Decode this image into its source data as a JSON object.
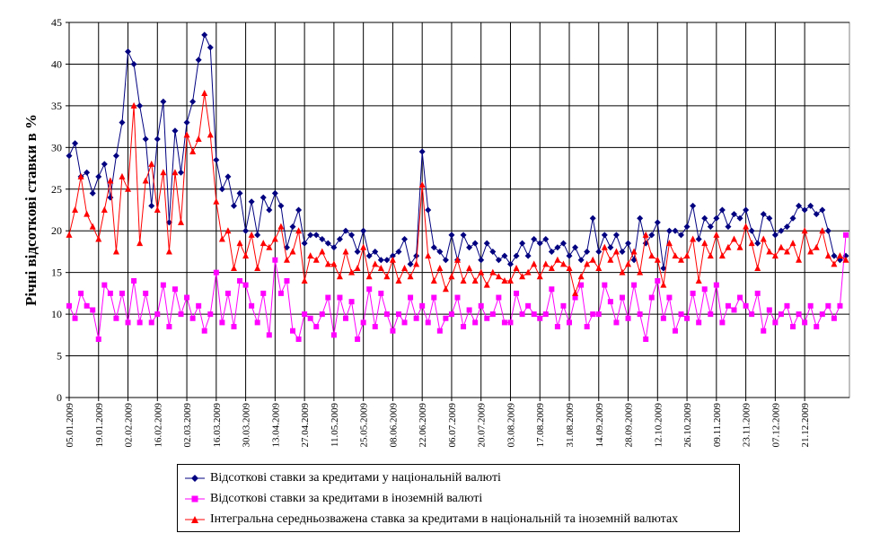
{
  "chart_data": {
    "type": "line",
    "ylabel": "Річні відсоткові ставки в %",
    "xlabel": "",
    "ylim": [
      0,
      45
    ],
    "yticks": [
      0,
      5,
      10,
      15,
      20,
      25,
      30,
      35,
      40,
      45
    ],
    "grid": true,
    "legend_placement": "bottom",
    "x_tick_labels": [
      "05.01.2009",
      "19.01.2009",
      "02.02.2009",
      "16.02.2009",
      "02.03.2009",
      "16.03.2009",
      "30.03.2009",
      "13.04.2009",
      "27.04.2009",
      "11.05.2009",
      "25.05.2009",
      "08.06.2009",
      "22.06.2009",
      "06.07.2009",
      "20.07.2009",
      "03.08.2009",
      "17.08.2009",
      "31.08.2009",
      "14.09.2009",
      "28.09.2009",
      "12.10.2009",
      "26.10.2009",
      "09.11.2009",
      "23.11.2009",
      "07.12.2009",
      "21.12.2009"
    ],
    "series": [
      {
        "name": "Відсоткові ставки за кредитами у національній валюті",
        "color": "#000080",
        "marker": "diamond",
        "values": [
          29,
          30.5,
          26.5,
          27,
          24.5,
          26.5,
          28,
          24,
          29,
          33,
          41.5,
          40,
          35,
          31,
          23,
          31,
          35.5,
          21,
          32,
          27,
          33,
          35.5,
          40.5,
          43.5,
          42,
          28.5,
          25,
          26.5,
          23,
          24.5,
          20,
          23.5,
          19.5,
          24,
          22.5,
          24.5,
          23,
          18,
          20.5,
          22.5,
          18.5,
          19.5,
          19.5,
          19,
          18.5,
          18,
          19,
          20,
          19.5,
          17.5,
          20,
          17,
          17.5,
          16.5,
          16.5,
          17,
          17.5,
          19,
          16,
          17,
          29.5,
          22.5,
          18,
          17.5,
          16.5,
          19.5,
          16.5,
          19.5,
          18,
          18.5,
          16.5,
          18.5,
          17.5,
          16.5,
          17,
          16,
          17,
          18.5,
          17,
          19,
          18.5,
          19,
          17.5,
          18,
          18.5,
          17,
          18,
          16.5,
          17.5,
          21.5,
          17.5,
          19.5,
          18,
          19.5,
          17.5,
          18.5,
          16.5,
          21.5,
          18.5,
          19.5,
          21,
          15.5,
          20,
          20,
          19.5,
          20.5,
          23,
          19,
          21.5,
          20.5,
          21.5,
          22.5,
          20.5,
          22,
          21.5,
          22.5,
          20,
          18.5,
          22,
          21.5,
          19.5,
          20,
          20.5,
          21.5,
          23,
          22.5,
          23,
          22,
          22.5,
          20,
          17,
          16.5,
          17
        ]
      },
      {
        "name": "Відсоткові ставки за кредитами в іноземній валюті",
        "color": "#FF00FF",
        "marker": "square",
        "values": [
          11,
          9.5,
          12.5,
          11,
          10.5,
          7,
          13.5,
          12.5,
          9.5,
          12.5,
          9,
          14,
          9,
          12.5,
          9,
          10,
          13.5,
          8.5,
          13,
          10,
          12,
          9.5,
          11,
          8,
          10,
          15,
          9,
          12.5,
          8.5,
          14,
          13.5,
          11,
          9,
          12.5,
          7.5,
          16.5,
          12.5,
          14,
          8,
          7,
          10,
          9.5,
          8.5,
          10,
          12,
          7.5,
          12,
          9.5,
          11.5,
          7,
          9,
          13,
          8.5,
          12.5,
          10,
          8,
          10,
          9,
          12,
          9.5,
          11,
          9,
          12,
          8,
          9.5,
          10,
          12,
          8.5,
          10.5,
          9,
          11,
          9.5,
          10,
          12,
          9,
          9,
          12.5,
          10,
          11,
          10,
          9.5,
          10,
          13,
          8.5,
          11,
          9,
          12,
          13.5,
          8.5,
          10,
          10,
          13.5,
          11.5,
          9,
          12,
          9.5,
          13.5,
          10,
          7,
          12,
          14,
          9.5,
          12,
          8,
          10,
          9.5,
          12.5,
          9,
          13,
          10,
          13.5,
          9,
          11,
          10.5,
          12,
          11,
          10,
          12.5,
          8,
          10.5,
          9,
          10,
          11,
          8.5,
          10,
          9,
          11,
          8.5,
          10,
          11,
          9.5,
          11,
          19.5
        ]
      },
      {
        "name": "Інтегральна середньозважена ставка за кредитами в національній та іноземній валютах",
        "color": "#FF0000",
        "marker": "triangle",
        "values": [
          19.5,
          22.5,
          26.5,
          22,
          20.5,
          19,
          22.5,
          26,
          17.5,
          26.5,
          25,
          35,
          18.5,
          26,
          28,
          22.5,
          27,
          17.5,
          27,
          21,
          31.5,
          29.5,
          31,
          36.5,
          31.5,
          23.5,
          19,
          20,
          15.5,
          18.5,
          17,
          19.5,
          15.5,
          18.5,
          18,
          19,
          20.5,
          16.5,
          17.5,
          20,
          14,
          17,
          16.5,
          17.5,
          16,
          16,
          14.5,
          17.5,
          15,
          15.5,
          18,
          14.5,
          16,
          15.5,
          14.5,
          16.5,
          14,
          15.5,
          14.5,
          16,
          25.5,
          17,
          14,
          15.5,
          13,
          14.5,
          16.5,
          14,
          15.5,
          14,
          15,
          13.5,
          15,
          14.5,
          14,
          14,
          15.5,
          14.5,
          15,
          16,
          14.5,
          16,
          15.5,
          16.5,
          16,
          15.5,
          12.5,
          14.5,
          16,
          16.5,
          15.5,
          18,
          16.5,
          17.5,
          15,
          16,
          17.5,
          15,
          19.5,
          17,
          16.5,
          13.5,
          18.5,
          17,
          16.5,
          17,
          19,
          14,
          18.5,
          17,
          19.5,
          17,
          18,
          19,
          18,
          20.5,
          18.5,
          15.5,
          19,
          17.5,
          17,
          18,
          17.5,
          18.5,
          16.5,
          20,
          17.5,
          18,
          20,
          17,
          16,
          17,
          16.5
        ]
      }
    ]
  }
}
